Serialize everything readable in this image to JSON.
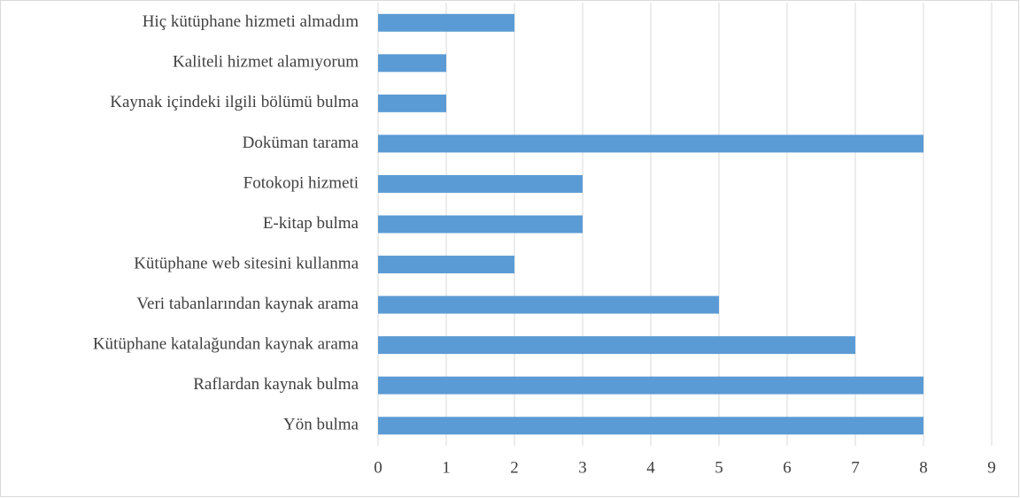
{
  "chart_data": {
    "type": "bar",
    "orientation": "horizontal",
    "categories": [
      "Yön bulma",
      "Raflardan kaynak bulma",
      "Kütüphane katalağundan kaynak arama",
      "Veri tabanlarından kaynak arama",
      "Kütüphane web sitesini kullanma",
      "E-kitap bulma",
      "Fotokopi hizmeti",
      "Doküman tarama",
      "Kaynak içindeki ilgili bölümü bulma",
      "Kaliteli hizmet alamıyorum",
      "Hiç kütüphane hizmeti almadım"
    ],
    "values": [
      8,
      8,
      7,
      5,
      2,
      3,
      3,
      8,
      1,
      1,
      2
    ],
    "color": "#5b9bd5",
    "xlim": [
      0,
      9
    ],
    "xticks": [
      0,
      1,
      2,
      3,
      4,
      5,
      6,
      7,
      8,
      9
    ],
    "grid": true
  }
}
